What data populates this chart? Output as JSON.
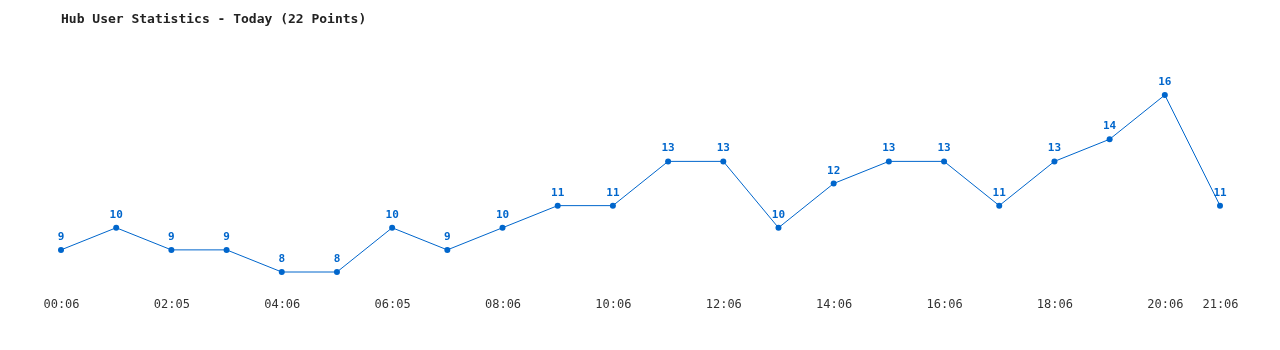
{
  "chart_data": {
    "type": "line",
    "title": "Hub User Statistics - Today (22 Points)",
    "categories": [
      "00:06",
      null,
      "02:05",
      null,
      "04:06",
      null,
      "06:05",
      null,
      "08:06",
      null,
      "10:06",
      null,
      "12:06",
      null,
      "14:06",
      null,
      "16:06",
      null,
      "18:06",
      null,
      "20:06",
      "21:06"
    ],
    "series": [
      {
        "color": "#0066cc",
        "values": [
          9,
          10,
          9,
          9,
          8,
          8,
          10,
          9,
          10,
          11,
          11,
          13,
          13,
          10,
          12,
          13,
          13,
          11,
          13,
          14,
          16,
          11
        ]
      }
    ],
    "data_labels": true,
    "marker": "circle",
    "line_style": "solid",
    "tick_labels": "x",
    "grid": false
  }
}
